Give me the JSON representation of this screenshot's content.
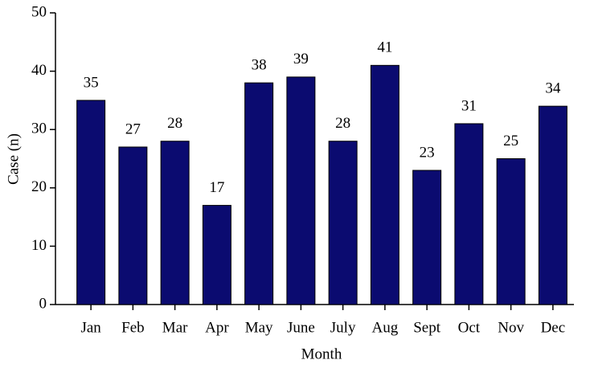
{
  "chart_data": {
    "type": "bar",
    "x_label": "Month",
    "y_label": "Case (n)",
    "categories": [
      "Jan",
      "Feb",
      "Mar",
      "Apr",
      "May",
      "June",
      "July",
      "Aug",
      "Sept",
      "Oct",
      "Nov",
      "Dec"
    ],
    "values": [
      35,
      27,
      28,
      17,
      38,
      39,
      28,
      41,
      23,
      31,
      25,
      34
    ],
    "color": "#0b0b70",
    "ylim": [
      0,
      50
    ],
    "yticks": [
      0,
      10,
      20,
      30,
      40,
      50
    ],
    "grid": false
  }
}
